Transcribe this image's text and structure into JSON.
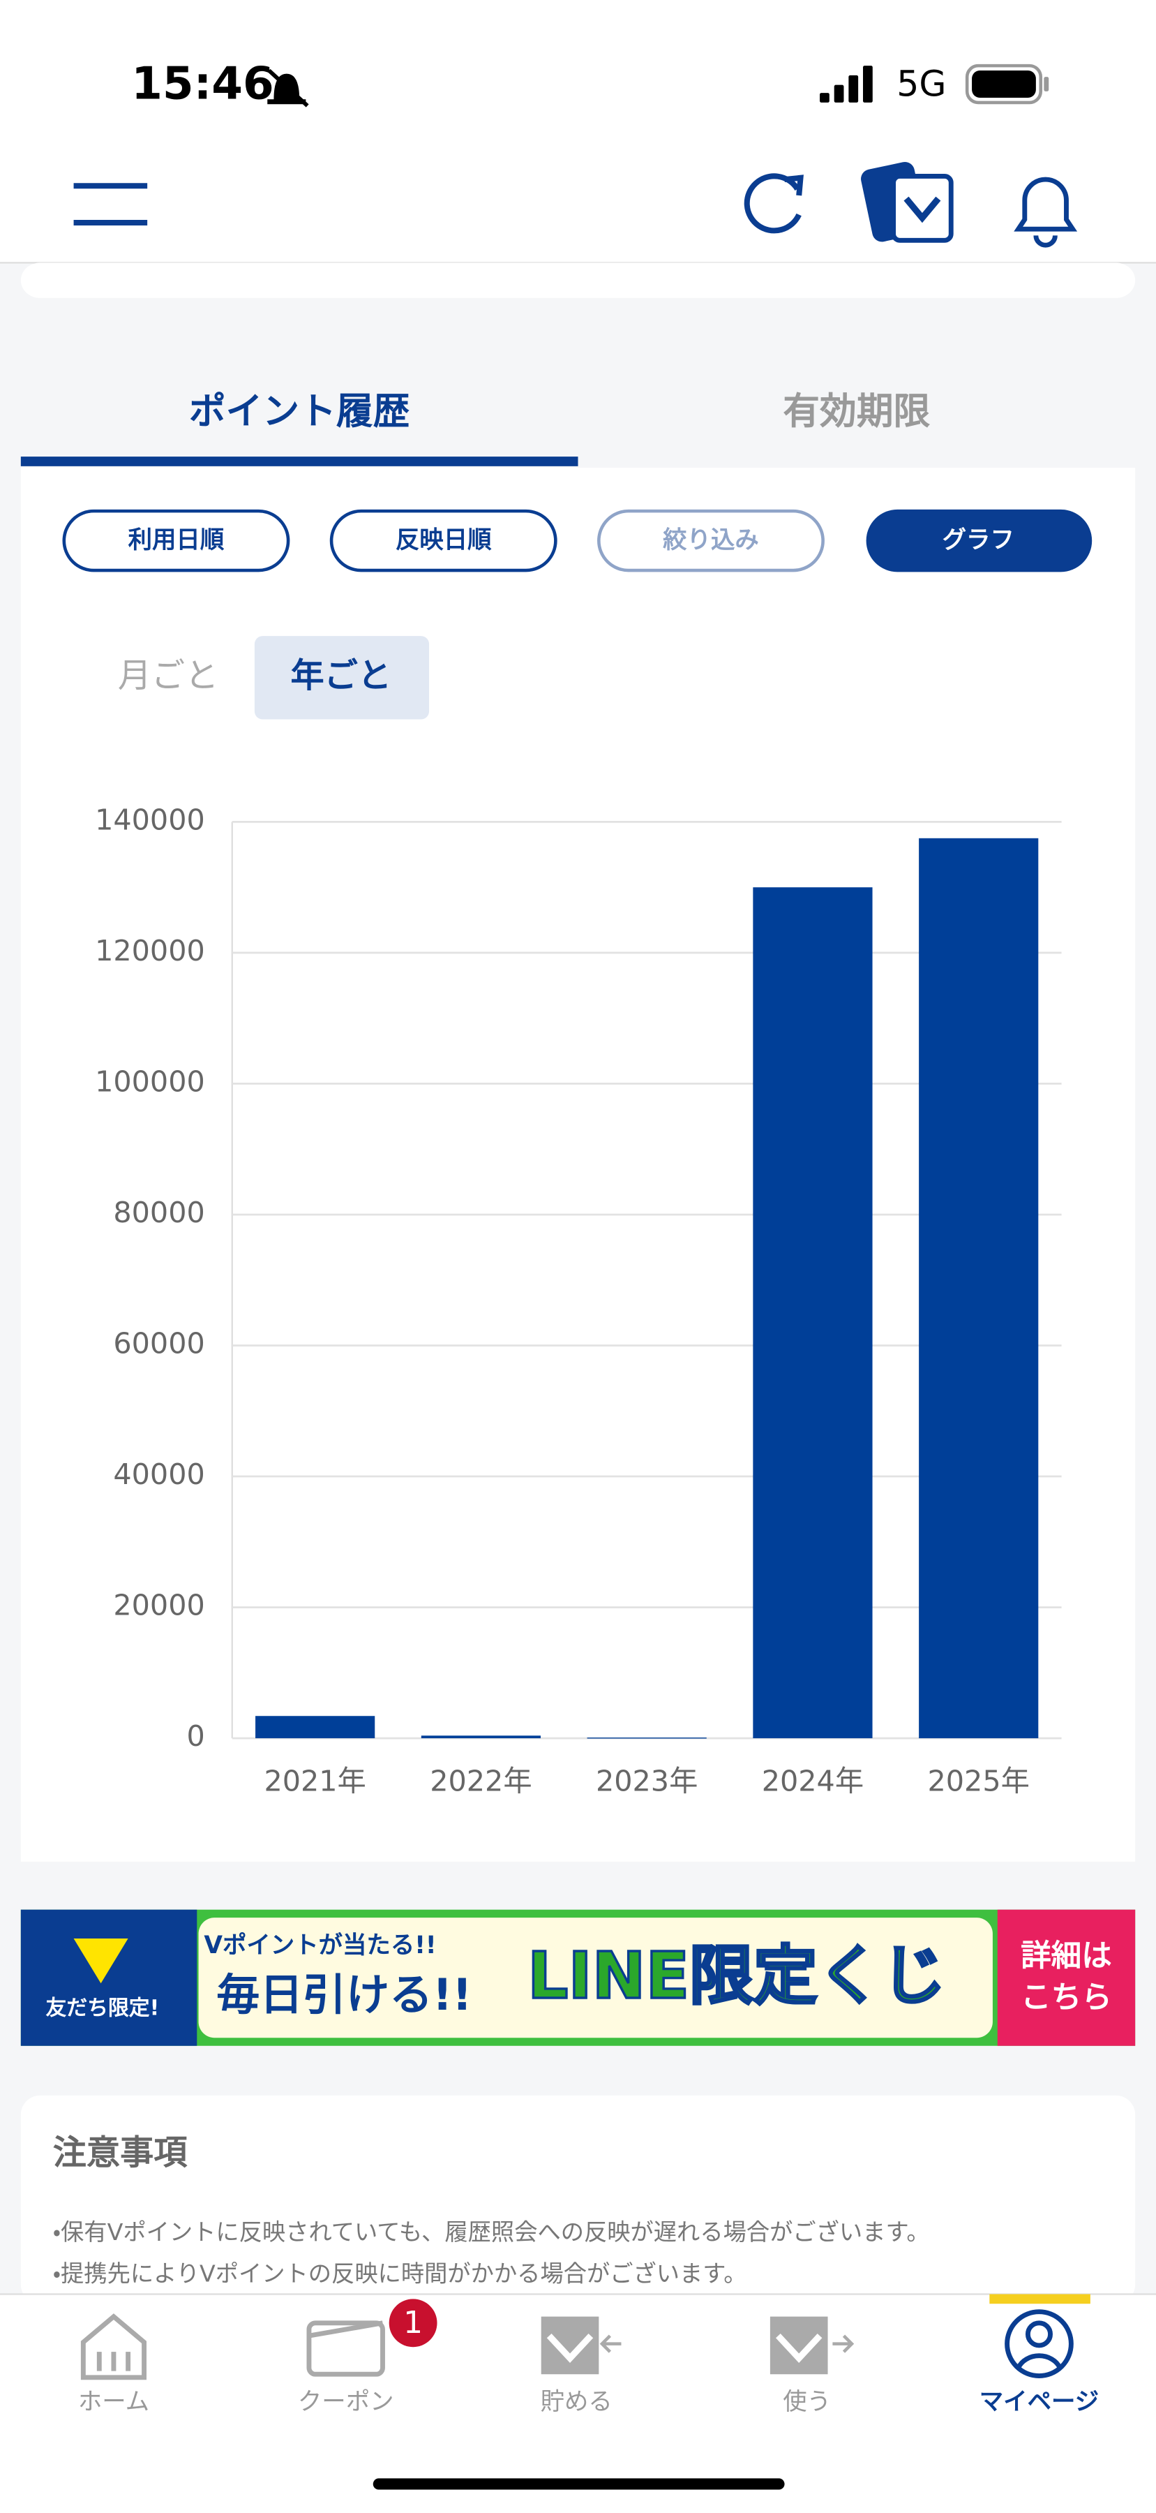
{
  "status_bar": {
    "time": "15:46",
    "network": "5G"
  },
  "tabs": [
    "ポイント履歴",
    "有効期限"
  ],
  "filters": [
    "利用日順",
    "反映日順",
    "絞り込み",
    "グラフ"
  ],
  "period_toggle": [
    "月ごと",
    "年ごと"
  ],
  "chart_data": {
    "type": "bar",
    "categories": [
      "2021年",
      "2022年",
      "2023年",
      "2024年",
      "2025年"
    ],
    "values": [
      3400,
      400,
      100,
      130000,
      137500
    ],
    "color": "#003f98",
    "ylim": [
      0,
      140000
    ],
    "yticks": [
      0,
      20000,
      40000,
      60000,
      80000,
      100000,
      120000,
      140000
    ],
    "grid": true
  },
  "banner": {
    "badge": "友だち限定!",
    "small": "Vポイントが当たる!!",
    "big": "毎日引ける!!",
    "headline": "LINE限定くじ",
    "cta": [
      "詳細は",
      "こちら"
    ]
  },
  "notes": {
    "title": "注意事項",
    "items": [
      "・保有Vポイントに反映されていても、履歴照会への反映が遅れる場合がございます。",
      "・提携先によりVポイントの反映に時間がかかる場合がございます。"
    ]
  },
  "bottom_nav": {
    "items": [
      "ホーム",
      "クーポン",
      "貯める",
      "使う",
      "マイページ"
    ],
    "coupon_badge": "1"
  }
}
